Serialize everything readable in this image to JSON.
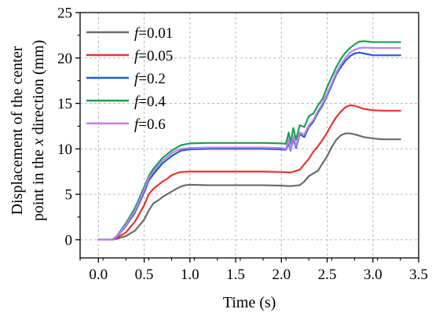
{
  "chart_data": {
    "type": "line",
    "xlabel": "Time (s)",
    "ylabel_line1": "Displacement of the center",
    "ylabel_line2_prefix": "point in the ",
    "ylabel_line2_var": "x",
    "ylabel_line2_suffix": " direction (mm)",
    "xlim": [
      -0.2,
      3.5
    ],
    "ylim": [
      -2,
      25
    ],
    "xticks": [
      "0.0",
      "0.5",
      "1.0",
      "1.5",
      "2.0",
      "2.5",
      "3.0",
      "3.5"
    ],
    "yticks": [
      "0",
      "5",
      "10",
      "15",
      "20",
      "25"
    ],
    "grid": true,
    "legend_position": "top-left",
    "series": [
      {
        "name_var": "f",
        "name_value": "=0.01",
        "color": "#6b6b6b",
        "points": [
          [
            0.0,
            0
          ],
          [
            0.15,
            0
          ],
          [
            0.2,
            0.1
          ],
          [
            0.3,
            0.4
          ],
          [
            0.4,
            1.0
          ],
          [
            0.5,
            2.2
          ],
          [
            0.55,
            3.2
          ],
          [
            0.6,
            4.0
          ],
          [
            0.65,
            4.3
          ],
          [
            0.7,
            4.7
          ],
          [
            0.75,
            5.0
          ],
          [
            0.8,
            5.3
          ],
          [
            0.85,
            5.6
          ],
          [
            0.9,
            5.85
          ],
          [
            0.95,
            6.0
          ],
          [
            1.0,
            6.05
          ],
          [
            1.2,
            6.0
          ],
          [
            1.5,
            6.0
          ],
          [
            1.8,
            6.0
          ],
          [
            2.0,
            5.95
          ],
          [
            2.1,
            5.9
          ],
          [
            2.2,
            6.0
          ],
          [
            2.25,
            6.4
          ],
          [
            2.3,
            7.0
          ],
          [
            2.4,
            7.6
          ],
          [
            2.45,
            8.4
          ],
          [
            2.5,
            9.2
          ],
          [
            2.55,
            10.2
          ],
          [
            2.6,
            11.0
          ],
          [
            2.65,
            11.5
          ],
          [
            2.7,
            11.7
          ],
          [
            2.75,
            11.7
          ],
          [
            2.8,
            11.6
          ],
          [
            2.9,
            11.3
          ],
          [
            3.0,
            11.15
          ],
          [
            3.1,
            11.05
          ],
          [
            3.3,
            11.05
          ]
        ]
      },
      {
        "name_var": "f",
        "name_value": "=0.05",
        "color": "#e8352f",
        "points": [
          [
            0.0,
            0
          ],
          [
            0.15,
            0
          ],
          [
            0.2,
            0.2
          ],
          [
            0.3,
            0.8
          ],
          [
            0.4,
            2.0
          ],
          [
            0.5,
            3.8
          ],
          [
            0.55,
            5.0
          ],
          [
            0.6,
            5.6
          ],
          [
            0.65,
            6.0
          ],
          [
            0.7,
            6.4
          ],
          [
            0.75,
            6.7
          ],
          [
            0.8,
            7.1
          ],
          [
            0.85,
            7.3
          ],
          [
            0.9,
            7.45
          ],
          [
            1.0,
            7.5
          ],
          [
            1.2,
            7.5
          ],
          [
            1.5,
            7.5
          ],
          [
            1.8,
            7.5
          ],
          [
            2.0,
            7.45
          ],
          [
            2.1,
            7.4
          ],
          [
            2.2,
            7.7
          ],
          [
            2.25,
            8.3
          ],
          [
            2.3,
            8.9
          ],
          [
            2.35,
            9.7
          ],
          [
            2.4,
            10.3
          ],
          [
            2.45,
            11.0
          ],
          [
            2.5,
            11.8
          ],
          [
            2.55,
            12.7
          ],
          [
            2.6,
            13.5
          ],
          [
            2.65,
            14.1
          ],
          [
            2.7,
            14.6
          ],
          [
            2.75,
            14.8
          ],
          [
            2.8,
            14.75
          ],
          [
            2.9,
            14.4
          ],
          [
            3.0,
            14.25
          ],
          [
            3.1,
            14.2
          ],
          [
            3.3,
            14.2
          ]
        ]
      },
      {
        "name_var": "f",
        "name_value": "=0.2",
        "color": "#1f5fd1",
        "points": [
          [
            0.0,
            0
          ],
          [
            0.15,
            0
          ],
          [
            0.2,
            0.3
          ],
          [
            0.3,
            1.5
          ],
          [
            0.4,
            3.0
          ],
          [
            0.5,
            5.2
          ],
          [
            0.55,
            6.5
          ],
          [
            0.6,
            7.2
          ],
          [
            0.65,
            7.8
          ],
          [
            0.7,
            8.4
          ],
          [
            0.75,
            8.8
          ],
          [
            0.8,
            9.2
          ],
          [
            0.85,
            9.5
          ],
          [
            0.9,
            9.8
          ],
          [
            1.0,
            9.95
          ],
          [
            1.2,
            10.0
          ],
          [
            1.5,
            10.0
          ],
          [
            1.8,
            10.0
          ],
          [
            2.0,
            9.95
          ],
          [
            2.05,
            9.9
          ],
          [
            2.08,
            10.6
          ],
          [
            2.1,
            9.8
          ],
          [
            2.13,
            11.1
          ],
          [
            2.16,
            10.1
          ],
          [
            2.2,
            11.6
          ],
          [
            2.25,
            11.3
          ],
          [
            2.3,
            12.4
          ],
          [
            2.35,
            13.0
          ],
          [
            2.4,
            14.0
          ],
          [
            2.45,
            14.8
          ],
          [
            2.5,
            15.9
          ],
          [
            2.55,
            17.0
          ],
          [
            2.6,
            18.2
          ],
          [
            2.65,
            19.0
          ],
          [
            2.7,
            19.7
          ],
          [
            2.75,
            20.2
          ],
          [
            2.8,
            20.5
          ],
          [
            2.85,
            20.6
          ],
          [
            2.9,
            20.5
          ],
          [
            3.0,
            20.3
          ],
          [
            3.1,
            20.3
          ],
          [
            3.3,
            20.3
          ]
        ]
      },
      {
        "name_var": "f",
        "name_value": "=0.4",
        "color": "#17a154",
        "points": [
          [
            0.0,
            0
          ],
          [
            0.15,
            0
          ],
          [
            0.2,
            0.4
          ],
          [
            0.3,
            1.8
          ],
          [
            0.4,
            3.5
          ],
          [
            0.5,
            5.8
          ],
          [
            0.55,
            7.0
          ],
          [
            0.6,
            7.8
          ],
          [
            0.65,
            8.4
          ],
          [
            0.7,
            9.0
          ],
          [
            0.75,
            9.4
          ],
          [
            0.8,
            9.8
          ],
          [
            0.85,
            10.1
          ],
          [
            0.9,
            10.4
          ],
          [
            1.0,
            10.6
          ],
          [
            1.2,
            10.65
          ],
          [
            1.5,
            10.65
          ],
          [
            1.8,
            10.65
          ],
          [
            2.0,
            10.6
          ],
          [
            2.05,
            10.55
          ],
          [
            2.08,
            11.8
          ],
          [
            2.1,
            10.6
          ],
          [
            2.13,
            12.3
          ],
          [
            2.16,
            11.0
          ],
          [
            2.2,
            12.6
          ],
          [
            2.25,
            12.4
          ],
          [
            2.3,
            13.6
          ],
          [
            2.35,
            13.9
          ],
          [
            2.4,
            14.8
          ],
          [
            2.45,
            15.5
          ],
          [
            2.5,
            16.8
          ],
          [
            2.55,
            17.9
          ],
          [
            2.6,
            19.0
          ],
          [
            2.65,
            19.9
          ],
          [
            2.7,
            20.6
          ],
          [
            2.75,
            21.1
          ],
          [
            2.8,
            21.5
          ],
          [
            2.85,
            21.8
          ],
          [
            2.9,
            21.85
          ],
          [
            3.0,
            21.75
          ],
          [
            3.1,
            21.75
          ],
          [
            3.3,
            21.75
          ]
        ]
      },
      {
        "name_var": "f",
        "name_value": "=0.6",
        "color": "#c27ef0",
        "points": [
          [
            0.0,
            0
          ],
          [
            0.15,
            0
          ],
          [
            0.2,
            0.35
          ],
          [
            0.3,
            1.6
          ],
          [
            0.4,
            3.2
          ],
          [
            0.5,
            5.5
          ],
          [
            0.55,
            6.8
          ],
          [
            0.6,
            7.5
          ],
          [
            0.65,
            8.1
          ],
          [
            0.7,
            8.7
          ],
          [
            0.75,
            9.1
          ],
          [
            0.8,
            9.5
          ],
          [
            0.85,
            9.8
          ],
          [
            0.9,
            10.0
          ],
          [
            1.0,
            10.1
          ],
          [
            1.2,
            10.15
          ],
          [
            1.5,
            10.15
          ],
          [
            1.8,
            10.15
          ],
          [
            2.0,
            10.1
          ],
          [
            2.05,
            10.0
          ],
          [
            2.08,
            11.0
          ],
          [
            2.1,
            9.9
          ],
          [
            2.13,
            11.4
          ],
          [
            2.16,
            10.3
          ],
          [
            2.2,
            11.8
          ],
          [
            2.25,
            11.6
          ],
          [
            2.3,
            12.6
          ],
          [
            2.35,
            13.2
          ],
          [
            2.4,
            14.2
          ],
          [
            2.45,
            15.0
          ],
          [
            2.5,
            16.1
          ],
          [
            2.55,
            17.2
          ],
          [
            2.6,
            18.4
          ],
          [
            2.65,
            19.3
          ],
          [
            2.7,
            20.0
          ],
          [
            2.75,
            20.6
          ],
          [
            2.8,
            20.9
          ],
          [
            2.85,
            21.1
          ],
          [
            2.9,
            21.15
          ],
          [
            3.0,
            21.1
          ],
          [
            3.1,
            21.1
          ],
          [
            3.3,
            21.1
          ]
        ]
      }
    ]
  }
}
